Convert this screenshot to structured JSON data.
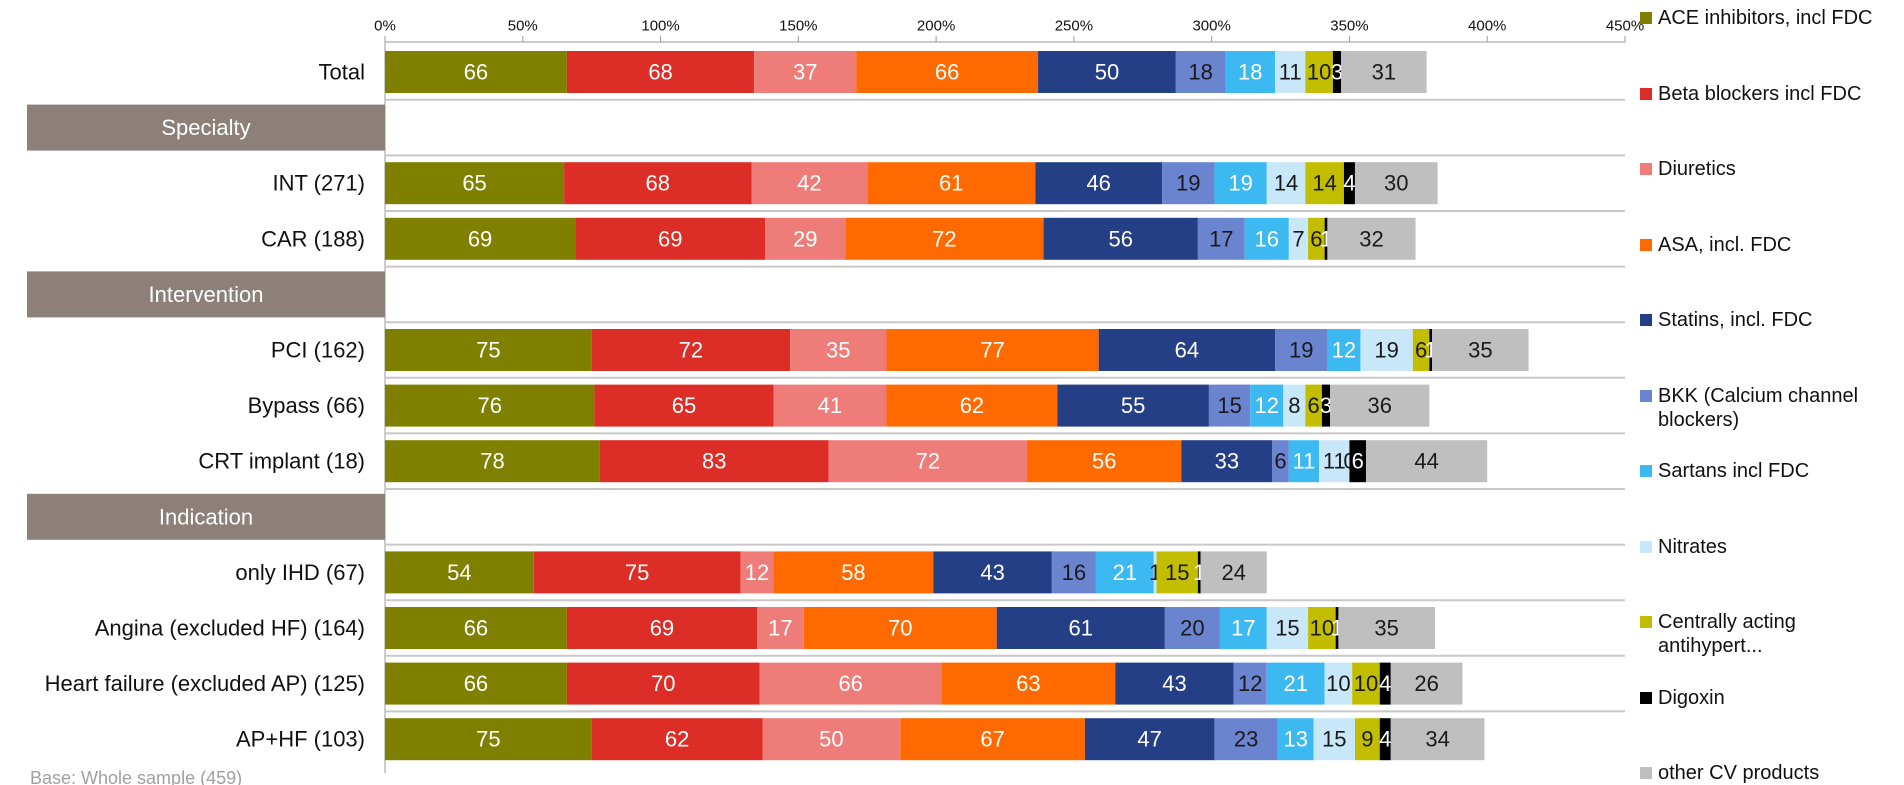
{
  "chart_data": {
    "type": "stacked_bar_horizontal",
    "categories": [
      "Total",
      "Specialty",
      "INT (271)",
      "CAR (188)",
      "Intervention",
      "PCI (162)",
      "Bypass (66)",
      "CRT implant (18)",
      "Indication",
      "only IHD (67)",
      "Angina (excluded HF) (164)",
      "Heart failure (excluded AP) (125)",
      "AP+HF (103)"
    ],
    "series": [
      {
        "name": "ACE inhibitors, incl FDC",
        "color": "#808000",
        "label_color": "#ffffff",
        "values": [
          66,
          null,
          65,
          69,
          null,
          75,
          76,
          78,
          null,
          54,
          66,
          66,
          75
        ]
      },
      {
        "name": "Beta blockers incl FDC",
        "color": "#dc2d26",
        "label_color": "#ffffff",
        "values": [
          68,
          null,
          68,
          69,
          null,
          72,
          65,
          83,
          null,
          75,
          69,
          70,
          62
        ]
      },
      {
        "name": "Diuretics",
        "color": "#ee7d7a",
        "label_color": "#ffffff",
        "values": [
          37,
          null,
          42,
          29,
          null,
          35,
          41,
          72,
          null,
          12,
          17,
          66,
          50
        ]
      },
      {
        "name": "ASA, incl. FDC",
        "color": "#ff6a00",
        "label_color": "#ffffff",
        "values": [
          66,
          null,
          61,
          72,
          null,
          77,
          62,
          56,
          null,
          58,
          70,
          63,
          67
        ]
      },
      {
        "name": "Statins, incl. FDC",
        "color": "#253f86",
        "label_color": "#ffffff",
        "values": [
          50,
          null,
          46,
          56,
          null,
          64,
          55,
          33,
          null,
          43,
          61,
          43,
          47
        ]
      },
      {
        "name": "BKK (Calcium channel blockers)",
        "color": "#6a84d0",
        "label_color": "#1a1a1a",
        "values": [
          18,
          null,
          19,
          17,
          null,
          19,
          15,
          6,
          null,
          16,
          20,
          12,
          23
        ]
      },
      {
        "name": "Sartans incl FDC",
        "color": "#3cb9f0",
        "label_color": "#ffffff",
        "values": [
          18,
          null,
          19,
          16,
          null,
          12,
          12,
          11,
          null,
          21,
          17,
          21,
          13
        ]
      },
      {
        "name": "Nitrates",
        "color": "#c8e8fa",
        "label_color": "#1a1a1a",
        "values": [
          11,
          null,
          14,
          7,
          null,
          19,
          8,
          11,
          null,
          1,
          15,
          10,
          15
        ]
      },
      {
        "name": "Centrally acting antihypert...",
        "color": "#c3bd00",
        "label_color": "#1a1a1a",
        "values": [
          10,
          null,
          14,
          6,
          null,
          6,
          6,
          0,
          null,
          15,
          10,
          10,
          9
        ]
      },
      {
        "name": "Digoxin",
        "color": "#000000",
        "label_color": "#ffffff",
        "values": [
          3,
          null,
          4,
          1,
          null,
          1,
          3,
          6,
          null,
          1,
          1,
          4,
          4
        ]
      },
      {
        "name": "other CV products",
        "color": "#bfbfbf",
        "label_color": "#1a1a1a",
        "values": [
          31,
          null,
          30,
          32,
          null,
          35,
          36,
          44,
          null,
          24,
          35,
          26,
          34
        ]
      }
    ],
    "xlim": [
      0,
      450
    ],
    "xticks": [
      {
        "value": 0,
        "label": "0%"
      },
      {
        "value": 50,
        "label": "50%"
      },
      {
        "value": 100,
        "label": "100%"
      },
      {
        "value": 150,
        "label": "150%"
      },
      {
        "value": 200,
        "label": "200%"
      },
      {
        "value": 250,
        "label": "250%"
      },
      {
        "value": 300,
        "label": "300%"
      },
      {
        "value": 350,
        "label": "350%"
      },
      {
        "value": 400,
        "label": "400%"
      },
      {
        "value": 450,
        "label": "450%"
      }
    ],
    "footnote": "Base: Whole sample (459)"
  }
}
